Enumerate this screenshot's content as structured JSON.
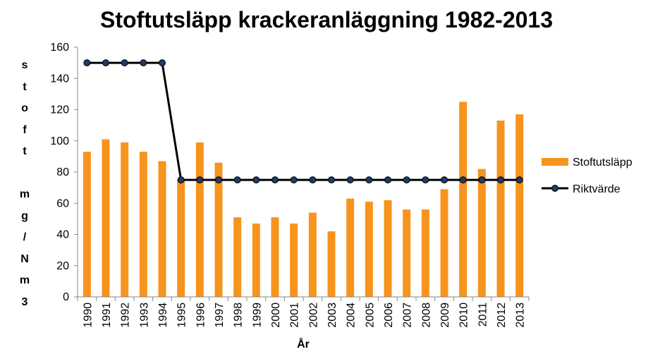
{
  "chart_data": {
    "type": "bar",
    "title": "Stoftutsläpp krackeranläggning 1982-2013",
    "xlabel": "År",
    "ylabel_chars": [
      "s",
      "t",
      "o",
      "f",
      "t",
      "",
      "m",
      "g",
      "/",
      "N",
      "m",
      "3"
    ],
    "ylim": [
      0,
      160
    ],
    "yticks": [
      0,
      20,
      40,
      60,
      80,
      100,
      120,
      140,
      160
    ],
    "categories": [
      "1990",
      "1991",
      "1992",
      "1993",
      "1994",
      "1995",
      "1996",
      "1997",
      "1998",
      "1999",
      "2000",
      "2001",
      "2002",
      "2003",
      "2004",
      "2005",
      "2006",
      "2007",
      "2008",
      "2009",
      "2010",
      "2011",
      "2012",
      "2013"
    ],
    "series": [
      {
        "name": "Stoftutsläpp",
        "kind": "bar",
        "color": "#F7941D",
        "values": [
          93,
          101,
          99,
          93,
          87,
          75,
          99,
          86,
          51,
          47,
          51,
          47,
          54,
          42,
          63,
          61,
          62,
          56,
          56,
          69,
          125,
          82,
          113,
          117
        ]
      },
      {
        "name": "Riktvärde",
        "kind": "line",
        "color": "#000000",
        "marker_color": "#1F3A68",
        "values": [
          150,
          150,
          150,
          150,
          150,
          75,
          75,
          75,
          75,
          75,
          75,
          75,
          75,
          75,
          75,
          75,
          75,
          75,
          75,
          75,
          75,
          75,
          75,
          75
        ]
      }
    ],
    "legend_position": "right"
  }
}
